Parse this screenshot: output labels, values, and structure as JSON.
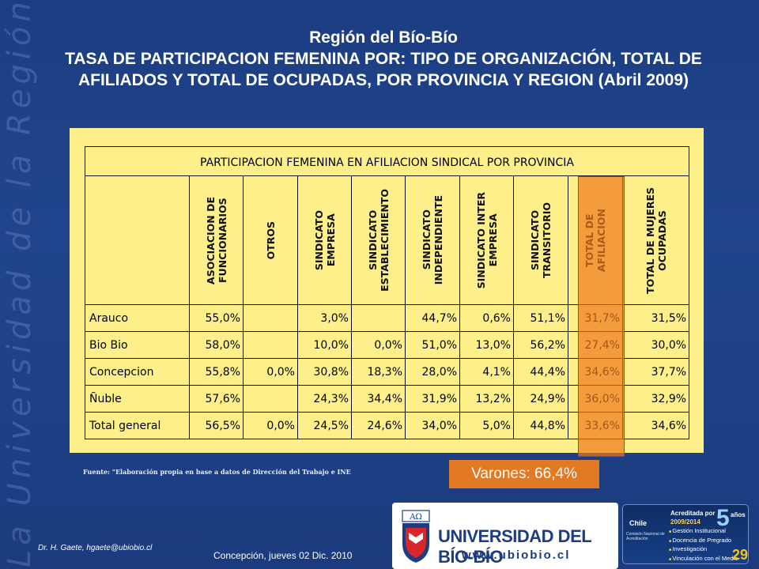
{
  "watermark": "La Universidad de la Región del Bío-Bío",
  "title": {
    "region": "Región del Bío-Bío",
    "subtitle": "TASA DE PARTICIPACION FEMENINA POR: TIPO DE ORGANIZACIÓN, TOTAL DE  AFILIADOS Y TOTAL DE OCUPADAS, POR PROVINCIA Y REGION (Abril 2009)"
  },
  "table": {
    "caption": "PARTICIPACION FEMENINA EN AFILIACION SINDICAL POR PROVINCIA",
    "columns": [
      "ASOCIACION DE\nFUNCIONARIOS",
      "OTROS",
      "SINDICATO\nEMPRESA",
      "SINDICATO\nESTABLECIMIENTO",
      "SINDICATO\nINDEPENDIENTE",
      "SINDICATO INTER\nEMPRESA",
      "SINDICATO\nTRANSITORIO",
      "TOTAL DE\nAFILIACION",
      "TOTAL DE MUJERES\nOCUPADAS"
    ],
    "rows": [
      {
        "name": "Arauco",
        "values": [
          "55,0%",
          "",
          "3,0%",
          "",
          "44,7%",
          "0,6%",
          "51,1%",
          "31,7%",
          "31,5%"
        ]
      },
      {
        "name": "Bio Bio",
        "values": [
          "58,0%",
          "",
          "10,0%",
          "0,0%",
          "51,0%",
          "13,0%",
          "56,2%",
          "27,4%",
          "30,0%"
        ]
      },
      {
        "name": "Concepcion",
        "values": [
          "55,8%",
          "0,0%",
          "30,8%",
          "18,3%",
          "28,0%",
          "4,1%",
          "44,4%",
          "34,6%",
          "37,7%"
        ]
      },
      {
        "name": "Ñuble",
        "values": [
          "57,6%",
          "",
          "24,3%",
          "34,4%",
          "31,9%",
          "13,2%",
          "24,9%",
          "36,0%",
          "32,9%"
        ]
      },
      {
        "name": "Total general",
        "values": [
          "56,5%",
          "0,0%",
          "24,5%",
          "24,6%",
          "34,0%",
          "5,0%",
          "44,8%",
          "33,6%",
          "34,6%"
        ]
      }
    ]
  },
  "source": "Fuente: \"Elaboración propia en base a datos de Dirección del Trabajo e INE",
  "varones": "Varones: 66,4%",
  "footer": {
    "author": "Dr. H. Gaete,     hgaete@ubiobio.cl",
    "date": "Concepción, jueves 02 Dic. 2010",
    "page": "29"
  },
  "logo": {
    "name": "UNIVERSIDAD DEL BÍO-BÍO",
    "url": "www.ubiobio.cl",
    "emblem_letters": "ΑΩ"
  },
  "accreditation": {
    "line1": "Acreditada por",
    "number": "5",
    "suffix": "años",
    "years": "2009/2014",
    "chile": "Chile",
    "agency": "Comisión Nacional de Acreditación",
    "items": [
      "Gestión Institucional",
      "Docencia de Pregrado",
      "Investigación",
      "Vinculación con el Medio"
    ]
  },
  "colors": {
    "background": "#1f428a",
    "panel": "#fdf08a",
    "highlight": "#ee781e",
    "page_number": "#f3c521"
  }
}
